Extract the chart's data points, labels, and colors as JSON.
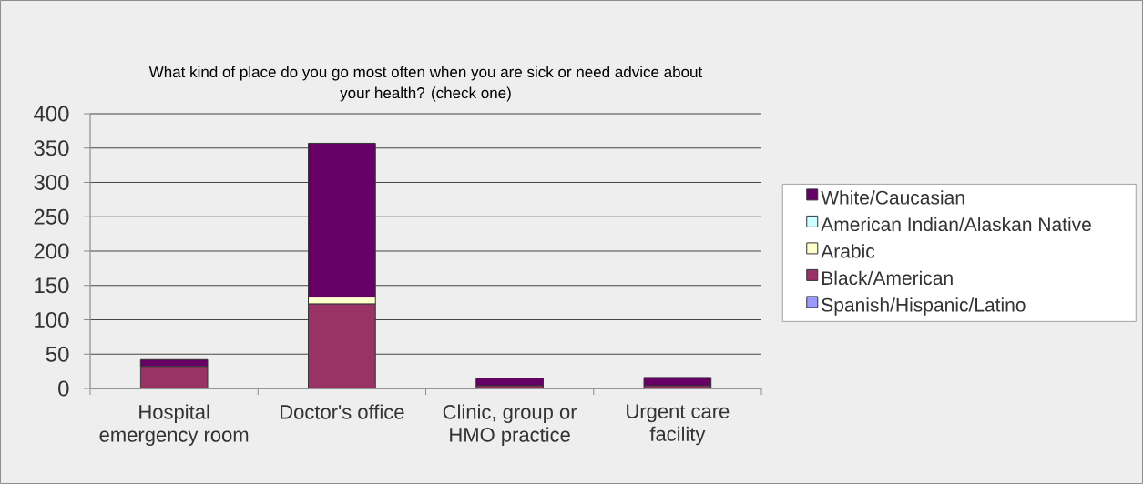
{
  "chart_data": {
    "type": "bar",
    "stacked": true,
    "title": "What kind of place do you go most often when you are sick or need advice about your health?  (check one)",
    "categories": [
      "Hospital emergency room",
      "Doctor's office",
      "Clinic, group or HMO practice",
      "Urgent care facility"
    ],
    "series": [
      {
        "name": "Spanish/Hispanic/Latino",
        "color": "#9999ff",
        "values": [
          null,
          null,
          null,
          null
        ]
      },
      {
        "name": "Black/American",
        "color": "#993366",
        "values": [
          32,
          123,
          4,
          4
        ]
      },
      {
        "name": "Arabic",
        "color": "#ffffcc",
        "values": [
          null,
          10,
          null,
          null
        ]
      },
      {
        "name": "American Indian/Alaskan Native",
        "color": "#ccffff",
        "values": [
          null,
          null,
          null,
          null
        ]
      },
      {
        "name": "White/Caucasian",
        "color": "#660066",
        "values": [
          10,
          224,
          11,
          12
        ]
      }
    ],
    "ylim": [
      0,
      400
    ],
    "yticks": [
      0,
      50,
      100,
      150,
      200,
      250,
      300,
      350,
      400
    ],
    "grid": "y",
    "legend": "right"
  }
}
